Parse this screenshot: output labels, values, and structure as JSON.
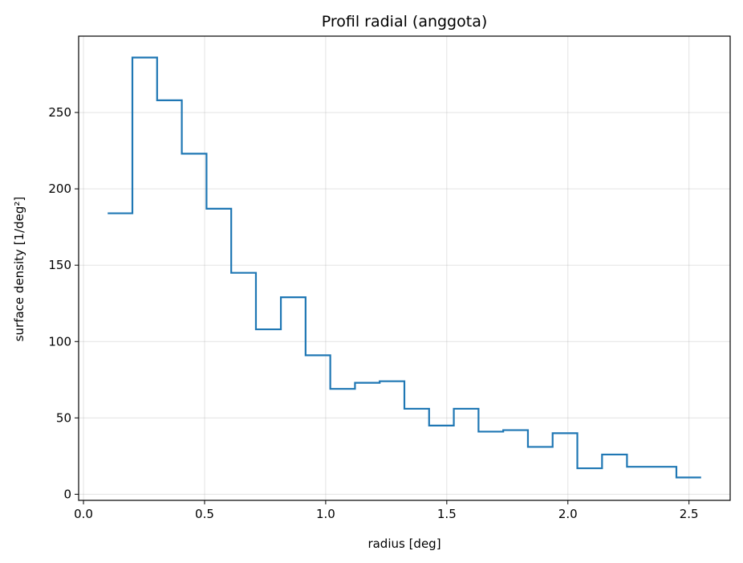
{
  "chart_data": {
    "type": "line",
    "style": "step",
    "title": "Profil radial (anggota)",
    "xlabel": "radius [deg]",
    "ylabel": "surface density [1/deg²]",
    "xlim": [
      -0.02,
      2.67
    ],
    "ylim": [
      -4,
      300
    ],
    "grid": true,
    "xticks": [
      0.0,
      0.5,
      1.0,
      1.5,
      2.0,
      2.5
    ],
    "xtick_labels": [
      "0.0",
      "0.5",
      "1.0",
      "1.5",
      "2.0",
      "2.5"
    ],
    "yticks": [
      0,
      50,
      100,
      150,
      200,
      250
    ],
    "ytick_labels": [
      "0",
      "50",
      "100",
      "150",
      "200",
      "250"
    ],
    "series": [
      {
        "color": "#1f77b4",
        "bin_edges": [
          0.1,
          0.202,
          0.304,
          0.406,
          0.508,
          0.61,
          0.712,
          0.815,
          0.917,
          1.019,
          1.121,
          1.223,
          1.325,
          1.427,
          1.529,
          1.631,
          1.733,
          1.835,
          1.937,
          2.039,
          2.141,
          2.244,
          2.346,
          2.448,
          2.55
        ],
        "values": [
          184,
          286,
          258,
          223,
          187,
          145,
          108,
          129,
          91,
          69,
          73,
          74,
          56,
          45,
          56,
          41,
          42,
          31,
          40,
          17,
          26,
          18,
          18,
          11
        ]
      }
    ]
  }
}
